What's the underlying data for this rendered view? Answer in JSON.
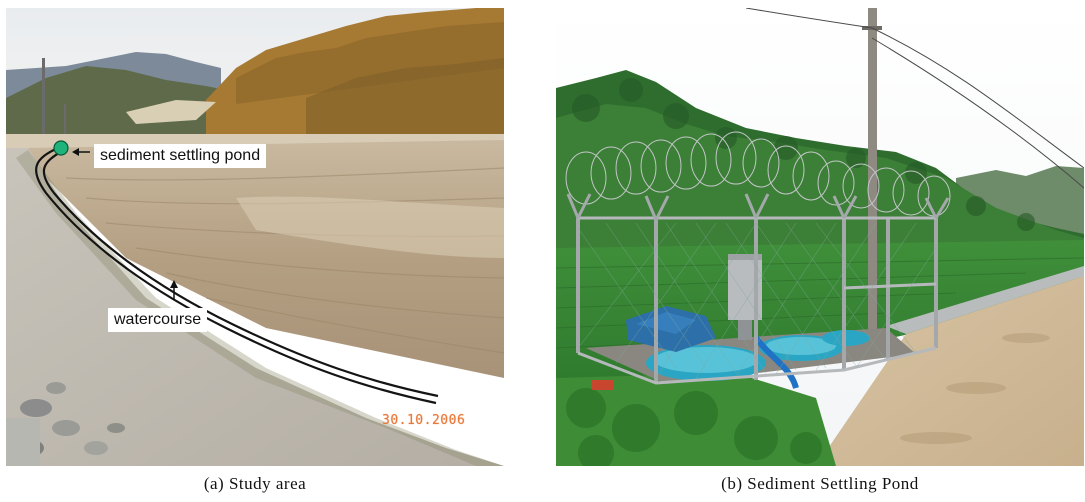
{
  "panel_a": {
    "caption": "(a) Study area",
    "label_pond": "sediment settling pond",
    "label_watercourse": "watercourse",
    "date_stamp": "30.10.2006",
    "marker_color": "#1fb27a"
  },
  "panel_b": {
    "caption": "(b) Sediment Settling Pond"
  }
}
